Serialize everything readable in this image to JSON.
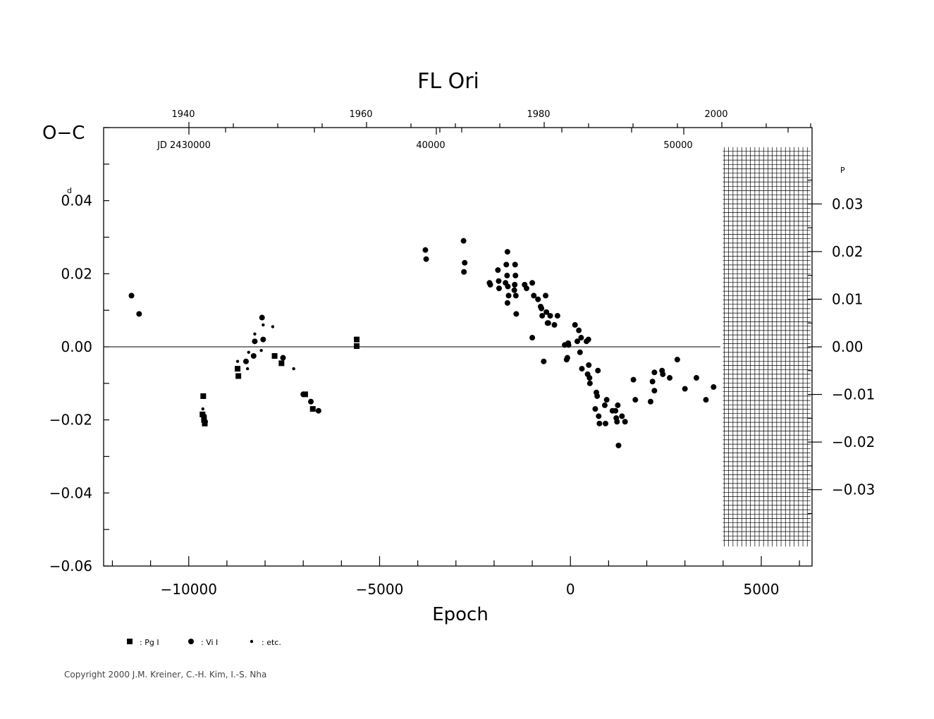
{
  "chart_data": {
    "type": "scatter",
    "title": "FL  Ori",
    "ylabel": "O−C",
    "xlabel": "Epoch",
    "xlim": [
      -12230,
      6330
    ],
    "ylim": [
      -0.06,
      0.06
    ],
    "x_ticks": [
      -10000,
      -5000,
      0,
      5000
    ],
    "x_tick_labels": [
      "−10000",
      "−5000",
      "0",
      "5000"
    ],
    "y_ticks": [
      0.04,
      0.02,
      0.0,
      -0.02,
      -0.04,
      -0.06
    ],
    "y_tick_labels": [
      "0.04",
      "0.02",
      "0.00",
      "−0.02",
      "−0.04",
      "−0.06"
    ],
    "y_unit_superscript": "d",
    "y2_ticks": [
      0.03,
      0.02,
      0.01,
      0.0,
      -0.01,
      -0.02,
      -0.03
    ],
    "y2_tick_labels": [
      "0.03",
      "0.02",
      "0.01",
      "0.00",
      "−0.01",
      "−0.02",
      "−0.03"
    ],
    "y2_unit_superscript": "P",
    "y2_scale_factor": 1.3035,
    "top_year_ticks": [
      1940,
      1960,
      1980,
      2000
    ],
    "top_year_labels": [
      "1940",
      "1960",
      "1980",
      "2000"
    ],
    "top_jd_ticks": [
      30000,
      40000,
      50000
    ],
    "top_jd_labels": [
      "JD  2430000",
      "40000",
      "50000"
    ],
    "hatch_region_start_epoch": 4030,
    "zero_line": true,
    "series": [
      {
        "name": "Pg I",
        "marker": "square",
        "points": [
          [
            -9640,
            -0.0185
          ],
          [
            -9620,
            -0.0135
          ],
          [
            -9600,
            -0.02
          ],
          [
            -9580,
            -0.021
          ],
          [
            -8720,
            -0.006
          ],
          [
            -8700,
            -0.008
          ],
          [
            -7750,
            -0.0025
          ],
          [
            -7570,
            -0.0045
          ],
          [
            -6950,
            -0.013
          ],
          [
            -6750,
            -0.017
          ],
          [
            -5600,
            0.002
          ],
          [
            -5600,
            0.0002
          ]
        ]
      },
      {
        "name": "Vi I",
        "marker": "circle",
        "points": [
          [
            -11500,
            0.014
          ],
          [
            -11300,
            0.009
          ],
          [
            -9600,
            -0.019
          ],
          [
            -9570,
            -0.0205
          ],
          [
            -8500,
            -0.004
          ],
          [
            -8300,
            -0.0025
          ],
          [
            -8270,
            0.0015
          ],
          [
            -8050,
            0.002
          ],
          [
            -8080,
            0.008
          ],
          [
            -7530,
            -0.003
          ],
          [
            -7000,
            -0.013
          ],
          [
            -6800,
            -0.015
          ],
          [
            -6600,
            -0.0175
          ],
          [
            -3800,
            0.0265
          ],
          [
            -3780,
            0.024
          ],
          [
            -2800,
            0.029
          ],
          [
            -2770,
            0.023
          ],
          [
            -2790,
            0.0205
          ],
          [
            -2120,
            0.0175
          ],
          [
            -2100,
            0.017
          ],
          [
            -1900,
            0.021
          ],
          [
            -1880,
            0.018
          ],
          [
            -1870,
            0.016
          ],
          [
            -1700,
            0.0175
          ],
          [
            -1650,
            0.026
          ],
          [
            -1680,
            0.0225
          ],
          [
            -1660,
            0.0195
          ],
          [
            -1640,
            0.0165
          ],
          [
            -1620,
            0.014
          ],
          [
            -1650,
            0.012
          ],
          [
            -1450,
            0.0225
          ],
          [
            -1440,
            0.0195
          ],
          [
            -1460,
            0.017
          ],
          [
            -1470,
            0.0155
          ],
          [
            -1430,
            0.014
          ],
          [
            -1420,
            0.009
          ],
          [
            -1200,
            0.017
          ],
          [
            -1150,
            0.016
          ],
          [
            -1000,
            0.0175
          ],
          [
            -960,
            0.014
          ],
          [
            -850,
            0.013
          ],
          [
            -1000,
            0.0025
          ],
          [
            -780,
            0.011
          ],
          [
            -760,
            0.0105
          ],
          [
            -740,
            0.0085
          ],
          [
            -700,
            -0.004
          ],
          [
            -650,
            0.014
          ],
          [
            -630,
            0.0095
          ],
          [
            -600,
            0.0065
          ],
          [
            -580,
            0.0065
          ],
          [
            -530,
            0.0085
          ],
          [
            -420,
            0.006
          ],
          [
            -340,
            0.0085
          ],
          [
            -150,
            0.0005
          ],
          [
            -100,
            -0.0035
          ],
          [
            -80,
            -0.003
          ],
          [
            -60,
            0.001
          ],
          [
            -50,
            0.0005
          ],
          [
            120,
            0.006
          ],
          [
            180,
            0.0015
          ],
          [
            220,
            0.0045
          ],
          [
            250,
            -0.0015
          ],
          [
            280,
            0.0025
          ],
          [
            300,
            -0.006
          ],
          [
            420,
            0.0015
          ],
          [
            450,
            -0.0075
          ],
          [
            470,
            0.002
          ],
          [
            480,
            -0.005
          ],
          [
            500,
            -0.0085
          ],
          [
            510,
            -0.01
          ],
          [
            680,
            -0.0125
          ],
          [
            700,
            -0.0135
          ],
          [
            720,
            -0.0065
          ],
          [
            650,
            -0.017
          ],
          [
            740,
            -0.019
          ],
          [
            760,
            -0.021
          ],
          [
            900,
            -0.016
          ],
          [
            920,
            -0.021
          ],
          [
            950,
            -0.0145
          ],
          [
            1100,
            -0.0175
          ],
          [
            1180,
            -0.0175
          ],
          [
            1200,
            -0.0195
          ],
          [
            1220,
            -0.0205
          ],
          [
            1240,
            -0.016
          ],
          [
            1260,
            -0.027
          ],
          [
            1350,
            -0.019
          ],
          [
            1430,
            -0.0205
          ],
          [
            1650,
            -0.009
          ],
          [
            1700,
            -0.0145
          ],
          [
            2100,
            -0.015
          ],
          [
            2150,
            -0.0095
          ],
          [
            2200,
            -0.012
          ],
          [
            2200,
            -0.007
          ],
          [
            2400,
            -0.0065
          ],
          [
            2420,
            -0.0075
          ],
          [
            2600,
            -0.0085
          ],
          [
            2800,
            -0.0035
          ],
          [
            3000,
            -0.0115
          ],
          [
            3300,
            -0.0085
          ],
          [
            3550,
            -0.0145
          ],
          [
            3750,
            -0.011
          ]
        ]
      },
      {
        "name": "etc.",
        "marker": "small-circle",
        "points": [
          [
            -9630,
            -0.017
          ],
          [
            -8720,
            -0.004
          ],
          [
            -8430,
            -0.0015
          ],
          [
            -8460,
            -0.006
          ],
          [
            -8270,
            0.0035
          ],
          [
            -8100,
            -0.001
          ],
          [
            -8050,
            0.006
          ],
          [
            -7800,
            0.0055
          ],
          [
            -7250,
            -0.006
          ]
        ]
      }
    ],
    "legend": [
      {
        "marker": "square",
        "label": ": Pg I"
      },
      {
        "marker": "circle",
        "label": ": Vi I"
      },
      {
        "marker": "small-circle",
        "label": ": etc."
      }
    ]
  },
  "copyright": "Copyright 2000 J.M. Kreiner, C.-H. Kim, I.-S. Nha"
}
